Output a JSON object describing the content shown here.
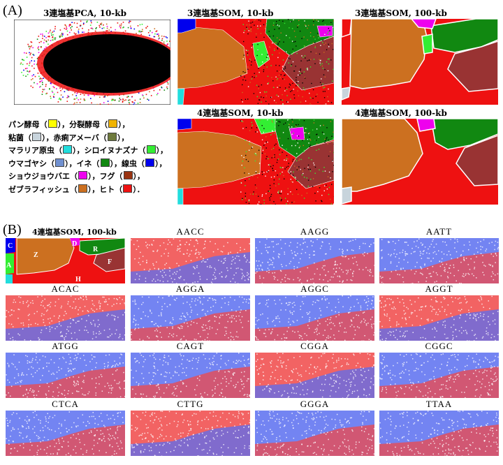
{
  "panel_a": {
    "label": "(A)",
    "titles": {
      "pca": "3連塩基PCA, 10-kb",
      "som3_10": "3連塩基SOM, 10-kb",
      "som3_100": "3連塩基SOM, 100-kb",
      "som4_10": "4連塩基SOM, 10-kb",
      "som4_100": "4連塩基SOM, 100-kb"
    },
    "legend": [
      {
        "name": "パン酵母",
        "color": "#ffff00"
      },
      {
        "name": "分裂酵母",
        "color": "#f0b400"
      },
      {
        "name": "粘菌",
        "color": "#c8d4dc"
      },
      {
        "name": "赤痢アメーバ",
        "color": "#6e7a3c"
      },
      {
        "name": "マラリア原虫",
        "color": "#22dddd"
      },
      {
        "name": "シロイヌナズナ",
        "color": "#33ee33"
      },
      {
        "name": "ウマゴヤシ",
        "color": "#7090d0"
      },
      {
        "name": "イネ",
        "color": "#118811"
      },
      {
        "name": "線虫",
        "color": "#0000ee"
      },
      {
        "name": "ショウジョウバエ",
        "color": "#ee00ee"
      },
      {
        "name": "フグ",
        "color": "#993311"
      },
      {
        "name": "ゼブラフィッシュ",
        "color": "#cc7020"
      },
      {
        "name": "ヒト",
        "color": "#ee1111"
      }
    ]
  },
  "panel_b": {
    "label": "(B)",
    "map_title": "4連塩基SOM, 100-kb",
    "region_labels": {
      "C": "C",
      "D": "D",
      "R": "R",
      "Z": "Z",
      "A": "A",
      "F": "F",
      "H": "H"
    },
    "kmers": [
      "AACC",
      "AAGG",
      "AATT",
      "ACAC",
      "AGGA",
      "AGGC",
      "AGGT",
      "ATGG",
      "CAGT",
      "CGGA",
      "CGGC",
      "CTCA",
      "CTTG",
      "GGGA",
      "TTAA"
    ]
  },
  "colors": {
    "red": "#ee1111",
    "brown": "#cc7020",
    "green": "#118811",
    "darkred": "#993333",
    "blue": "#0000ee",
    "magenta": "#ee00ee",
    "lime": "#33ee33",
    "cyan": "#22dddd",
    "heat_blue": "#5a6ef0",
    "heat_red": "#f04848"
  }
}
